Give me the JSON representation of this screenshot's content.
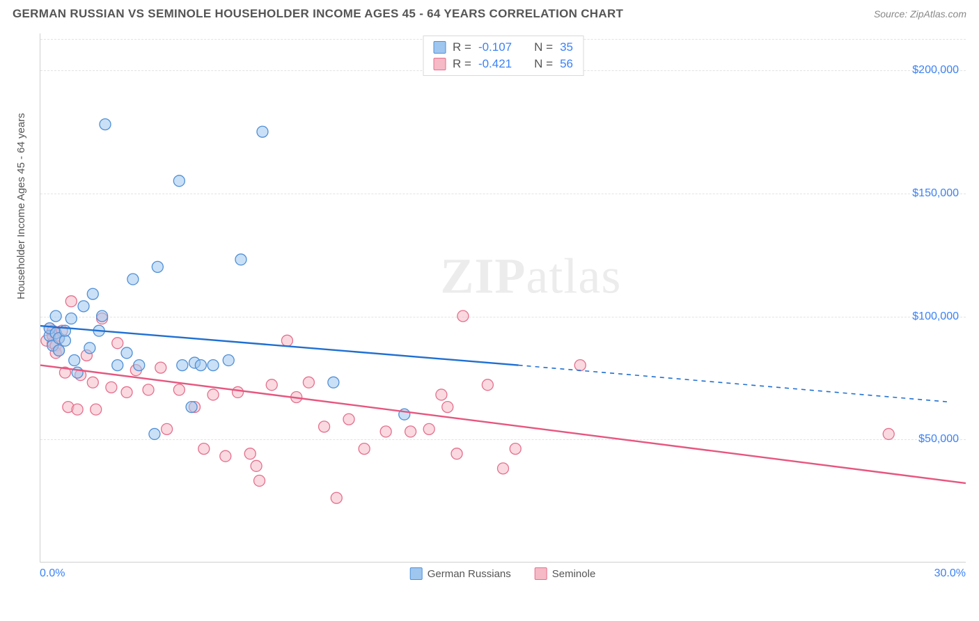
{
  "header": {
    "title": "GERMAN RUSSIAN VS SEMINOLE HOUSEHOLDER INCOME AGES 45 - 64 YEARS CORRELATION CHART",
    "source": "Source: ZipAtlas.com"
  },
  "watermark": {
    "zip": "ZIP",
    "atlas": "atlas"
  },
  "chart": {
    "type": "scatter",
    "ylabel": "Householder Income Ages 45 - 64 years",
    "xlim": [
      0,
      30
    ],
    "ylim": [
      0,
      215000
    ],
    "yticks": [
      {
        "v": 50000,
        "label": "$50,000"
      },
      {
        "v": 100000,
        "label": "$100,000"
      },
      {
        "v": 150000,
        "label": "$150,000"
      },
      {
        "v": 200000,
        "label": "$200,000"
      }
    ],
    "xticks": {
      "left": "0.0%",
      "right": "30.0%"
    },
    "grid_color": "#e2e2e2",
    "background_color": "#ffffff",
    "marker_radius": 8,
    "marker_opacity": 0.55,
    "series": [
      {
        "name": "German Russians",
        "fill": "#9ec6ef",
        "stroke": "#4f8fd6",
        "line_color": "#1f6fd1",
        "R": "-0.107",
        "N": "35",
        "trend": {
          "x1": 0,
          "y1": 96000,
          "x2_solid": 15.5,
          "y2_solid": 80000,
          "x2_dash": 29.5,
          "y2_dash": 65000
        },
        "points": [
          [
            0.3,
            92000
          ],
          [
            0.3,
            95000
          ],
          [
            0.4,
            88000
          ],
          [
            0.5,
            100000
          ],
          [
            0.5,
            93000
          ],
          [
            0.6,
            86000
          ],
          [
            0.6,
            91000
          ],
          [
            0.8,
            90000
          ],
          [
            0.8,
            94000
          ],
          [
            1.0,
            99000
          ],
          [
            1.1,
            82000
          ],
          [
            1.2,
            77000
          ],
          [
            1.4,
            104000
          ],
          [
            1.6,
            87000
          ],
          [
            1.7,
            109000
          ],
          [
            1.9,
            94000
          ],
          [
            2.0,
            100000
          ],
          [
            2.1,
            178000
          ],
          [
            2.5,
            80000
          ],
          [
            2.8,
            85000
          ],
          [
            3.0,
            115000
          ],
          [
            3.2,
            80000
          ],
          [
            3.7,
            52000
          ],
          [
            3.8,
            120000
          ],
          [
            4.5,
            155000
          ],
          [
            4.6,
            80000
          ],
          [
            4.9,
            63000
          ],
          [
            5.0,
            81000
          ],
          [
            5.2,
            80000
          ],
          [
            6.1,
            82000
          ],
          [
            7.2,
            175000
          ],
          [
            9.5,
            73000
          ],
          [
            11.8,
            60000
          ],
          [
            6.5,
            123000
          ],
          [
            5.6,
            80000
          ]
        ]
      },
      {
        "name": "Seminole",
        "fill": "#f6b9c6",
        "stroke": "#e46f8c",
        "line_color": "#e6567f",
        "R": "-0.421",
        "N": "56",
        "trend": {
          "x1": 0,
          "y1": 80000,
          "x2_solid": 30,
          "y2_solid": 32000
        },
        "points": [
          [
            0.2,
            90000
          ],
          [
            0.3,
            95000
          ],
          [
            0.4,
            89000
          ],
          [
            0.4,
            94000
          ],
          [
            0.4,
            92000
          ],
          [
            0.5,
            88000
          ],
          [
            0.5,
            85000
          ],
          [
            0.5,
            93000
          ],
          [
            0.6,
            91000
          ],
          [
            0.6,
            86000
          ],
          [
            0.7,
            94000
          ],
          [
            0.8,
            77000
          ],
          [
            0.9,
            63000
          ],
          [
            1.0,
            106000
          ],
          [
            1.2,
            62000
          ],
          [
            1.3,
            76000
          ],
          [
            1.5,
            84000
          ],
          [
            1.7,
            73000
          ],
          [
            1.8,
            62000
          ],
          [
            2.0,
            99000
          ],
          [
            2.3,
            71000
          ],
          [
            2.5,
            89000
          ],
          [
            2.8,
            69000
          ],
          [
            3.1,
            78000
          ],
          [
            3.5,
            70000
          ],
          [
            3.9,
            79000
          ],
          [
            4.1,
            54000
          ],
          [
            4.5,
            70000
          ],
          [
            5.0,
            63000
          ],
          [
            5.3,
            46000
          ],
          [
            5.6,
            68000
          ],
          [
            6.0,
            43000
          ],
          [
            6.4,
            69000
          ],
          [
            7.0,
            39000
          ],
          [
            7.1,
            33000
          ],
          [
            7.5,
            72000
          ],
          [
            8.0,
            90000
          ],
          [
            8.3,
            67000
          ],
          [
            8.7,
            73000
          ],
          [
            9.2,
            55000
          ],
          [
            9.6,
            26000
          ],
          [
            10.0,
            58000
          ],
          [
            10.5,
            46000
          ],
          [
            11.2,
            53000
          ],
          [
            12.0,
            53000
          ],
          [
            12.6,
            54000
          ],
          [
            13.0,
            68000
          ],
          [
            13.2,
            63000
          ],
          [
            13.5,
            44000
          ],
          [
            13.7,
            100000
          ],
          [
            14.5,
            72000
          ],
          [
            15.0,
            38000
          ],
          [
            15.4,
            46000
          ],
          [
            17.5,
            80000
          ],
          [
            27.5,
            52000
          ],
          [
            6.8,
            44000
          ]
        ]
      }
    ],
    "legend_items": [
      {
        "label": "German Russians",
        "fill": "#9ec6ef",
        "stroke": "#4f8fd6"
      },
      {
        "label": "Seminole",
        "fill": "#f6b9c6",
        "stroke": "#e46f8c"
      }
    ]
  }
}
